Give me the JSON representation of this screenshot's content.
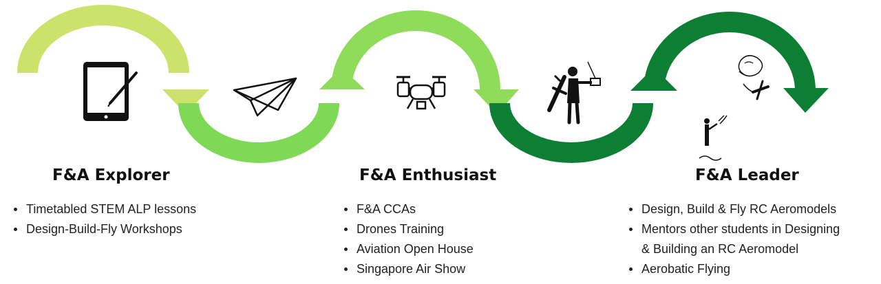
{
  "colors": {
    "arc_light": "#cde26a",
    "arc_mid": "#7fd957",
    "arc_mid_alt": "#8edc5a",
    "arc_dark": "#0d7f34",
    "ink": "#111111"
  },
  "icons": [
    "tablet-stylus-icon",
    "paper-plane-icon",
    "drone-icon",
    "rc-pilot-icon",
    "rc-aerobatic-flying-icon"
  ],
  "stages": [
    {
      "title": "F&A Explorer",
      "items": [
        "Timetabled STEM ALP lessons",
        "Design-Build-Fly Workshops"
      ]
    },
    {
      "title": "F&A Enthusiast",
      "items": [
        "F&A CCAs",
        "Drones Training",
        "Aviation Open House",
        "Singapore Air Show"
      ]
    },
    {
      "title": "F&A Leader",
      "items": [
        "Design, Build & Fly RC Aeromodels",
        "Mentors other students in Designing",
        "& Building an RC Aeromodel",
        "Aerobatic Flying"
      ]
    }
  ]
}
